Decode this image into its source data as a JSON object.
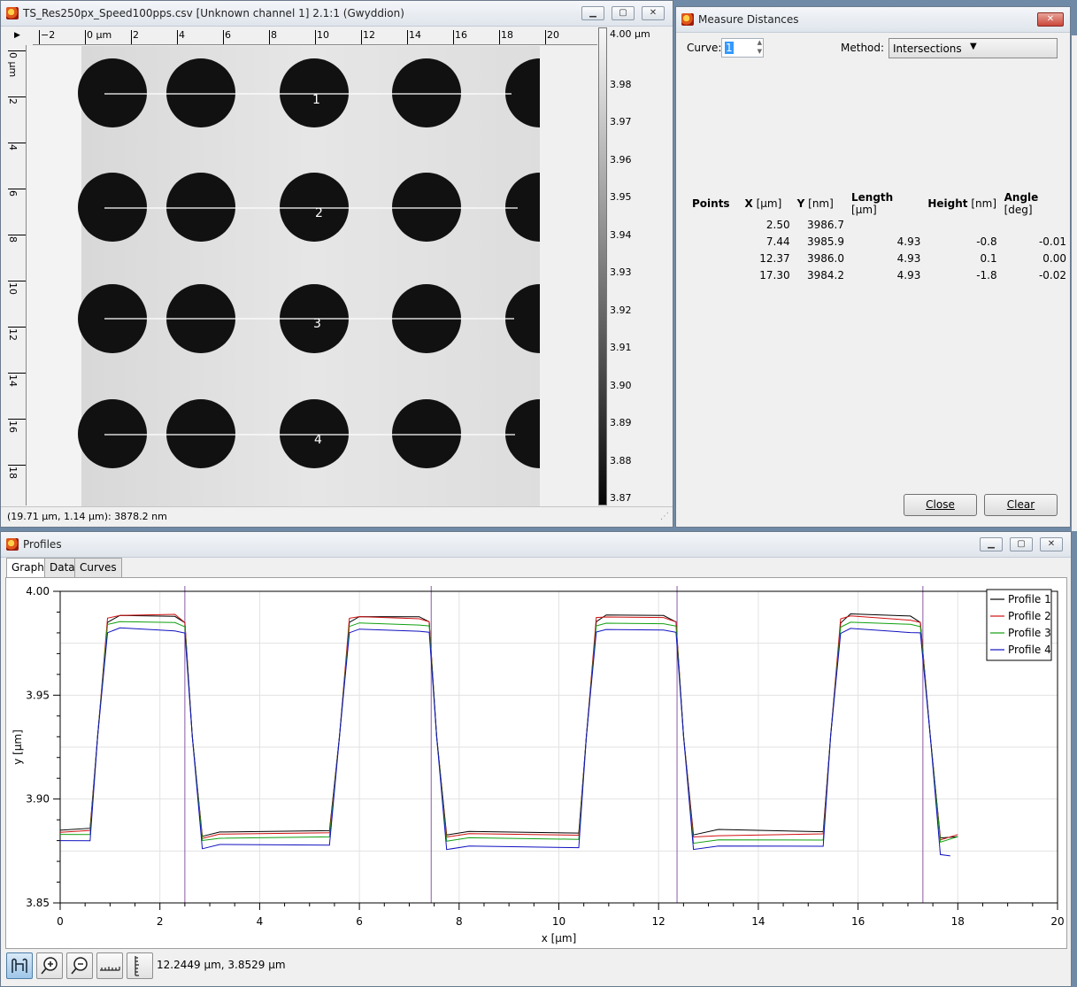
{
  "image_window": {
    "title": "TS_Res250px_Speed100pps.csv [Unknown channel 1] 2.1:1 (Gwyddion)",
    "status": "(19.71 µm, 1.14 µm): 3878.2 nm",
    "h_ruler_labels": [
      "−2",
      "0 µm",
      "2",
      "4",
      "6",
      "8",
      "10",
      "12",
      "14",
      "16",
      "18",
      "20"
    ],
    "v_ruler_labels": [
      "0 µm",
      "2",
      "4",
      "6",
      "8",
      "10",
      "12",
      "14",
      "16",
      "18"
    ],
    "colorbar_labels": [
      "4.00 µm",
      "3.98",
      "3.97",
      "3.96",
      "3.95",
      "3.94",
      "3.93",
      "3.92",
      "3.91",
      "3.90",
      "3.89",
      "3.88",
      "3.87"
    ],
    "profile_line_labels": [
      "1",
      "2",
      "3",
      "4"
    ]
  },
  "measure_dialog": {
    "title": "Measure Distances",
    "curve_label": "Curve:",
    "curve_value": "1",
    "method_label": "Method:",
    "method_value": "Intersections",
    "columns": [
      {
        "name": "Points",
        "unit": ""
      },
      {
        "name": "X",
        "unit": "[µm]"
      },
      {
        "name": "Y",
        "unit": "[nm]"
      },
      {
        "name": "Length",
        "unit": "[µm]"
      },
      {
        "name": "Height",
        "unit": "[nm]"
      },
      {
        "name": "Angle",
        "unit": "[deg]"
      }
    ],
    "rows": [
      [
        "",
        "2.50",
        "3986.7",
        "",
        "",
        ""
      ],
      [
        "",
        "7.44",
        "3985.9",
        "4.93",
        "-0.8",
        "-0.01"
      ],
      [
        "",
        "12.37",
        "3986.0",
        "4.93",
        "0.1",
        "0.00"
      ],
      [
        "",
        "17.30",
        "3984.2",
        "4.93",
        "-1.8",
        "-0.02"
      ]
    ],
    "close_label": "Close",
    "clear_label": "Clear"
  },
  "profiles_window": {
    "title": "Profiles",
    "tabs": [
      "Graph",
      "Data",
      "Curves"
    ],
    "status": "12.2449 µm, 3.8529 µm"
  },
  "chart_data": {
    "type": "line",
    "xlabel": "x [µm]",
    "ylabel": "y [µm]",
    "xlim": [
      0,
      20
    ],
    "ylim": [
      3.85,
      4.0
    ],
    "x_ticks": [
      0,
      2,
      4,
      6,
      8,
      10,
      12,
      14,
      16,
      18,
      20
    ],
    "y_ticks": [
      3.85,
      3.9,
      3.95,
      4.0
    ],
    "y_tick_labels": [
      "3.85",
      "3.90",
      "3.95",
      "4.00"
    ],
    "legend_position": "top-right",
    "vertical_markers": [
      2.5,
      7.44,
      12.37,
      17.3
    ],
    "series": [
      {
        "name": "Profile 1",
        "color": "#000000",
        "x": [
          0,
          0.6,
          0.75,
          0.95,
          1.2,
          2.3,
          2.5,
          2.65,
          2.85,
          3.2,
          5.4,
          5.6,
          5.8,
          6.0,
          7.2,
          7.4,
          7.55,
          7.75,
          8.2,
          10.4,
          10.55,
          10.75,
          10.95,
          12.1,
          12.35,
          12.5,
          12.7,
          13.2,
          15.3,
          15.45,
          15.65,
          15.85,
          17.05,
          17.25,
          17.45,
          17.65,
          18.0
        ],
        "y": [
          3.885,
          3.886,
          3.93,
          3.985,
          3.988,
          3.988,
          3.985,
          3.93,
          3.882,
          3.884,
          3.885,
          3.93,
          3.985,
          3.988,
          3.988,
          3.985,
          3.93,
          3.883,
          3.884,
          3.884,
          3.93,
          3.985,
          3.989,
          3.988,
          3.985,
          3.93,
          3.883,
          3.885,
          3.884,
          3.93,
          3.985,
          3.989,
          3.988,
          3.985,
          3.93,
          3.881,
          3.882
        ]
      },
      {
        "name": "Profile 2",
        "color": "#d01010",
        "x": [
          0,
          0.6,
          0.75,
          0.95,
          1.2,
          2.3,
          2.5,
          2.65,
          2.85,
          3.2,
          5.4,
          5.6,
          5.8,
          6.0,
          7.2,
          7.4,
          7.55,
          7.75,
          8.2,
          10.4,
          10.55,
          10.75,
          10.95,
          12.1,
          12.35,
          12.5,
          12.7,
          13.2,
          15.3,
          15.45,
          15.65,
          15.85,
          17.05,
          17.25,
          17.45,
          17.65,
          18.0
        ],
        "y": [
          3.884,
          3.885,
          3.93,
          3.987,
          3.988,
          3.989,
          3.985,
          3.93,
          3.881,
          3.883,
          3.884,
          3.93,
          3.987,
          3.988,
          3.987,
          3.985,
          3.93,
          3.882,
          3.883,
          3.883,
          3.93,
          3.987,
          3.988,
          3.987,
          3.985,
          3.93,
          3.882,
          3.882,
          3.883,
          3.93,
          3.987,
          3.988,
          3.986,
          3.985,
          3.93,
          3.88,
          3.883
        ]
      },
      {
        "name": "Profile 3",
        "color": "#10a010",
        "x": [
          0,
          0.6,
          0.75,
          0.95,
          1.2,
          2.3,
          2.5,
          2.65,
          2.85,
          3.2,
          5.4,
          5.6,
          5.8,
          6.0,
          7.2,
          7.4,
          7.55,
          7.75,
          8.2,
          10.4,
          10.55,
          10.75,
          10.95,
          12.1,
          12.35,
          12.5,
          12.7,
          13.2,
          15.3,
          15.45,
          15.65,
          15.85,
          17.05,
          17.25,
          17.45,
          17.65,
          18.0
        ],
        "y": [
          3.883,
          3.883,
          3.93,
          3.984,
          3.985,
          3.985,
          3.983,
          3.93,
          3.88,
          3.881,
          3.882,
          3.93,
          3.983,
          3.985,
          3.984,
          3.983,
          3.93,
          3.88,
          3.881,
          3.881,
          3.93,
          3.983,
          3.985,
          3.984,
          3.983,
          3.93,
          3.879,
          3.88,
          3.88,
          3.93,
          3.983,
          3.985,
          3.984,
          3.983,
          3.93,
          3.879,
          3.882
        ]
      },
      {
        "name": "Profile 4",
        "color": "#1010c0",
        "x": [
          0,
          0.6,
          0.75,
          0.95,
          1.2,
          2.3,
          2.5,
          2.65,
          2.85,
          3.2,
          5.4,
          5.6,
          5.8,
          6.0,
          7.2,
          7.4,
          7.55,
          7.75,
          8.2,
          10.4,
          10.55,
          10.75,
          10.95,
          12.1,
          12.35,
          12.5,
          12.7,
          13.2,
          15.3,
          15.45,
          15.65,
          15.85,
          17.05,
          17.25,
          17.45,
          17.65,
          17.85
        ],
        "y": [
          3.88,
          3.88,
          3.93,
          3.98,
          3.982,
          3.981,
          3.98,
          3.93,
          3.876,
          3.878,
          3.878,
          3.93,
          3.98,
          3.982,
          3.981,
          3.98,
          3.93,
          3.876,
          3.877,
          3.877,
          3.93,
          3.98,
          3.982,
          3.981,
          3.98,
          3.93,
          3.876,
          3.877,
          3.877,
          3.93,
          3.98,
          3.982,
          3.98,
          3.98,
          3.93,
          3.873,
          3.873
        ]
      }
    ]
  }
}
